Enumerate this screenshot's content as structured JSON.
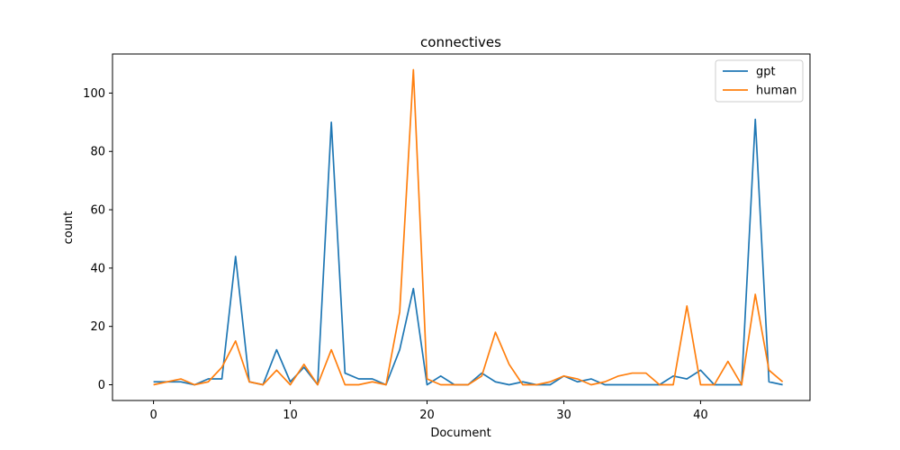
{
  "chart_data": {
    "type": "line",
    "title": "connectives",
    "xlabel": "Document",
    "ylabel": "count",
    "xlim": [
      -3,
      48
    ],
    "ylim": [
      -5.4,
      113.4
    ],
    "xticks": [
      0,
      10,
      20,
      30,
      40
    ],
    "yticks": [
      0,
      20,
      40,
      60,
      80,
      100
    ],
    "grid": false,
    "legend_position": "top-right",
    "x": [
      0,
      1,
      2,
      3,
      4,
      5,
      6,
      7,
      8,
      9,
      10,
      11,
      12,
      13,
      14,
      15,
      16,
      17,
      18,
      19,
      20,
      21,
      22,
      23,
      24,
      25,
      26,
      27,
      28,
      29,
      30,
      31,
      32,
      33,
      34,
      35,
      36,
      37,
      38,
      39,
      40,
      41,
      42,
      43,
      44,
      45,
      46
    ],
    "series": [
      {
        "name": "gpt",
        "color": "#1f77b4",
        "values": [
          1,
          1,
          1,
          0,
          2,
          2,
          44,
          1,
          0,
          12,
          1,
          6,
          0,
          90,
          4,
          2,
          2,
          0,
          12,
          33,
          0,
          3,
          0,
          0,
          4,
          1,
          0,
          1,
          0,
          0,
          3,
          1,
          2,
          0,
          0,
          0,
          0,
          0,
          3,
          2,
          5,
          0,
          0,
          0,
          91,
          1,
          0
        ]
      },
      {
        "name": "human",
        "color": "#ff7f0e",
        "values": [
          0,
          1,
          2,
          0,
          1,
          6,
          15,
          1,
          0,
          5,
          0,
          7,
          0,
          12,
          0,
          0,
          1,
          0,
          25,
          108,
          2,
          0,
          0,
          0,
          3,
          18,
          7,
          0,
          0,
          1,
          3,
          2,
          0,
          1,
          3,
          4,
          4,
          0,
          0,
          27,
          0,
          0,
          8,
          0,
          31,
          5,
          1
        ]
      }
    ]
  }
}
